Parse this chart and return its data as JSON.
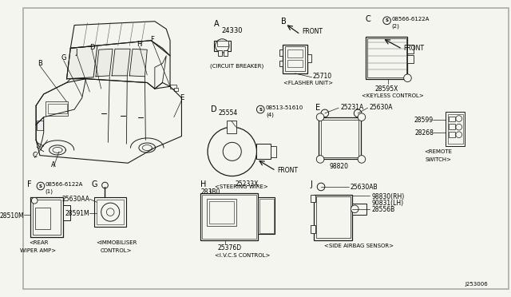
{
  "bg_color": "#f5f5f0",
  "border_color": "#999999",
  "line_color": "#1a1a1a",
  "text_color": "#000000",
  "fig_width": 6.4,
  "fig_height": 3.72,
  "dpi": 100,
  "footnote": "J253006",
  "sections": {
    "A_label": "A",
    "A_part": "24330",
    "A_desc": "(CIRCUIT BREAKER)",
    "B_label": "B",
    "B_part": "25710",
    "B_desc": "<FLASHER UNIT>",
    "C_label": "C",
    "C_part": "28595X",
    "C_desc": "<KEYLESS CONTROL>",
    "C_screw": "08566-6122A",
    "C_screw2": "(2)",
    "D_label": "D",
    "D_part": "25554",
    "D_screw": "08513-51610",
    "D_screw2": "(4)",
    "D_desc": "<STEERING WIRE>",
    "E_label": "E",
    "E_part1": "25231A",
    "E_part2": "25630A",
    "E_part3": "98820",
    "F_label": "F",
    "F_screw": "08566-6122A",
    "F_screw2": "(1)",
    "F_part": "28510M",
    "F_desc1": "<REAR",
    "F_desc2": "WIPER AMP>",
    "G_label": "G",
    "G_part1": "25630AA",
    "G_part2": "28591M",
    "G_desc1": "<IMMOBILISER",
    "G_desc2": "CONTROL>",
    "H_label": "H",
    "H_part1": "25233X",
    "H_part2": "283B0",
    "H_part3": "25376D",
    "H_desc": "<I.V.C.S CONTROL>",
    "J_label": "J",
    "J_part1": "25630AB",
    "J_part2": "28556B",
    "J_part3a": "98830(RH)",
    "J_part3b": "90831(LH)",
    "J_desc": "<SIDE AIRBAG SENSOR>",
    "R_part1": "28599",
    "R_part2": "28268",
    "R_desc1": "<REMOTE",
    "R_desc2": "SWITCH>"
  }
}
